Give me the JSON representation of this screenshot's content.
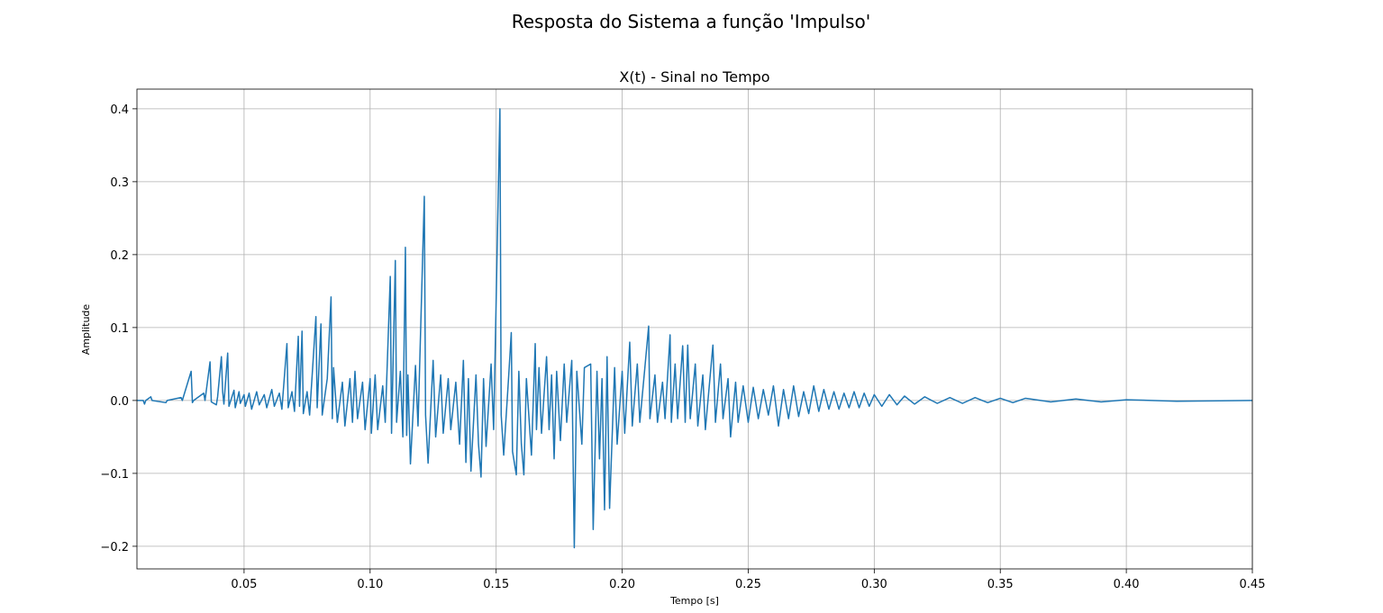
{
  "chart_data": {
    "type": "line",
    "title": "Resposta do Sistema a função 'Impulso'",
    "subtitle": "X(t) - Sinal no Tempo",
    "xlabel": "Tempo [s]",
    "ylabel": "Amplitude",
    "color": "#1f77b4",
    "grid": true,
    "xlim": [
      0.0075,
      0.45
    ],
    "ylim": [
      -0.231,
      0.427
    ],
    "xticks": [
      0.05,
      {
        "value": 0.1,
        "label": "0.10"
      },
      0.15,
      {
        "value": 0.2,
        "label": "0.20"
      },
      0.25,
      {
        "value": 0.3,
        "label": "0.30"
      },
      0.35,
      {
        "value": 0.4,
        "label": "0.40"
      },
      0.45
    ],
    "yticks": [
      {
        "value": -0.2,
        "label": "−0.2"
      },
      {
        "value": -0.1,
        "label": "−0.1"
      },
      {
        "value": 0,
        "label": "0.0"
      },
      0.1,
      0.2,
      0.3,
      0.4
    ],
    "x": [
      0.0075,
      0.01,
      0.0105,
      0.011,
      0.013,
      0.0135,
      0.019,
      0.0195,
      0.025,
      0.0255,
      0.029,
      0.0295,
      0.03,
      0.034,
      0.0345,
      0.0365,
      0.037,
      0.039,
      0.0395,
      0.041,
      0.0415,
      0.042,
      0.0435,
      0.044,
      0.046,
      0.0465,
      0.048,
      0.0485,
      0.05,
      0.0505,
      0.052,
      0.053,
      0.055,
      0.056,
      0.058,
      0.059,
      0.061,
      0.062,
      0.064,
      0.065,
      0.067,
      0.0675,
      0.069,
      0.07,
      0.0715,
      0.072,
      0.073,
      0.0735,
      0.075,
      0.076,
      0.0785,
      0.079,
      0.0805,
      0.081,
      0.083,
      0.0845,
      0.085,
      0.0855,
      0.087,
      0.089,
      0.09,
      0.092,
      0.093,
      0.094,
      0.095,
      0.097,
      0.098,
      0.1,
      0.1005,
      0.102,
      0.103,
      0.105,
      0.106,
      0.108,
      0.1085,
      0.11,
      0.1105,
      0.112,
      0.113,
      0.114,
      0.1145,
      0.115,
      0.116,
      0.118,
      0.119,
      0.1215,
      0.122,
      0.123,
      0.125,
      0.126,
      0.128,
      0.129,
      0.131,
      0.132,
      0.134,
      0.1355,
      0.137,
      0.138,
      0.139,
      0.14,
      0.142,
      0.143,
      0.144,
      0.145,
      0.146,
      0.148,
      0.149,
      0.1515,
      0.152,
      0.153,
      0.155,
      0.156,
      0.1565,
      0.158,
      0.159,
      0.16,
      0.161,
      0.162,
      0.164,
      0.1655,
      0.166,
      0.167,
      0.168,
      0.17,
      0.171,
      0.172,
      0.173,
      0.174,
      0.1755,
      0.177,
      0.178,
      0.18,
      0.181,
      0.182,
      0.184,
      0.185,
      0.1875,
      0.1885,
      0.19,
      0.191,
      0.192,
      0.193,
      0.194,
      0.195,
      0.197,
      0.198,
      0.2,
      0.201,
      0.203,
      0.204,
      0.206,
      0.207,
      0.209,
      0.2105,
      0.211,
      0.213,
      0.214,
      0.216,
      0.217,
      0.219,
      0.2195,
      0.221,
      0.222,
      0.224,
      0.225,
      0.226,
      0.227,
      0.229,
      0.23,
      0.232,
      0.233,
      0.236,
      0.237,
      0.239,
      0.24,
      0.242,
      0.243,
      0.245,
      0.246,
      0.248,
      0.25,
      0.252,
      0.254,
      0.256,
      0.258,
      0.26,
      0.262,
      0.264,
      0.266,
      0.268,
      0.27,
      0.272,
      0.274,
      0.276,
      0.278,
      0.28,
      0.282,
      0.284,
      0.286,
      0.288,
      0.29,
      0.292,
      0.294,
      0.296,
      0.298,
      0.3,
      0.303,
      0.306,
      0.309,
      0.312,
      0.316,
      0.32,
      0.325,
      0.33,
      0.335,
      0.34,
      0.345,
      0.35,
      0.355,
      0.36,
      0.37,
      0.38,
      0.39,
      0.4,
      0.42,
      0.45
    ],
    "values": [
      0,
      0,
      -0.005,
      0,
      0.005,
      0,
      -0.003,
      0,
      0.004,
      0,
      0.04,
      -0.003,
      0,
      0.01,
      0,
      0.053,
      -0.002,
      -0.006,
      0.005,
      0.06,
      0.012,
      -0.005,
      0.065,
      -0.008,
      0.014,
      -0.01,
      0.012,
      -0.004,
      0.008,
      -0.008,
      0.01,
      -0.012,
      0.012,
      -0.006,
      0.008,
      -0.01,
      0.015,
      -0.008,
      0.01,
      -0.012,
      0.078,
      -0.01,
      0.012,
      -0.015,
      0.088,
      -0.008,
      0.095,
      -0.018,
      0.012,
      -0.02,
      0.115,
      -0.01,
      0.105,
      -0.02,
      0.03,
      0.142,
      -0.025,
      0.045,
      -0.03,
      0.025,
      -0.035,
      0.03,
      -0.03,
      0.04,
      -0.025,
      0.025,
      -0.04,
      0.03,
      -0.045,
      0.035,
      -0.04,
      0.02,
      -0.03,
      0.17,
      -0.045,
      0.192,
      -0.03,
      0.04,
      -0.05,
      0.21,
      -0.048,
      0.035,
      -0.087,
      0.048,
      -0.035,
      0.28,
      -0.02,
      -0.086,
      0.055,
      -0.05,
      0.035,
      -0.045,
      0.03,
      -0.04,
      0.025,
      -0.06,
      0.055,
      -0.085,
      0.03,
      -0.097,
      0.035,
      -0.06,
      -0.105,
      0.03,
      -0.063,
      0.05,
      -0.04,
      0.4,
      -0.02,
      -0.075,
      0.035,
      0.093,
      -0.07,
      -0.102,
      0.04,
      -0.06,
      -0.102,
      0.03,
      -0.075,
      0.078,
      -0.04,
      0.045,
      -0.045,
      0.06,
      -0.04,
      0.035,
      -0.08,
      0.04,
      -0.055,
      0.05,
      -0.03,
      0.055,
      -0.202,
      0.04,
      -0.06,
      0.045,
      0.05,
      -0.177,
      0.04,
      -0.08,
      0.03,
      -0.15,
      0.06,
      -0.148,
      0.045,
      -0.06,
      0.04,
      -0.045,
      0.08,
      -0.035,
      0.05,
      -0.03,
      0.045,
      0.102,
      -0.025,
      0.035,
      -0.03,
      0.025,
      -0.025,
      0.09,
      -0.03,
      0.05,
      -0.025,
      0.075,
      -0.03,
      0.076,
      -0.025,
      0.05,
      -0.035,
      0.035,
      -0.04,
      0.076,
      -0.03,
      0.05,
      -0.025,
      0.03,
      -0.05,
      0.025,
      -0.03,
      0.02,
      -0.03,
      0.018,
      -0.025,
      0.015,
      -0.02,
      0.02,
      -0.035,
      0.015,
      -0.025,
      0.02,
      -0.022,
      0.012,
      -0.018,
      0.02,
      -0.015,
      0.015,
      -0.012,
      0.012,
      -0.012,
      0.01,
      -0.01,
      0.012,
      -0.01,
      0.01,
      -0.008,
      0.008,
      -0.008,
      0.008,
      -0.006,
      0.006,
      -0.005,
      0.005,
      -0.004,
      0.004,
      -0.004,
      0.004,
      -0.003,
      0.003,
      -0.003,
      0.003,
      -0.002,
      0.002,
      -0.002,
      0.001,
      -0.001,
      0
    ]
  }
}
